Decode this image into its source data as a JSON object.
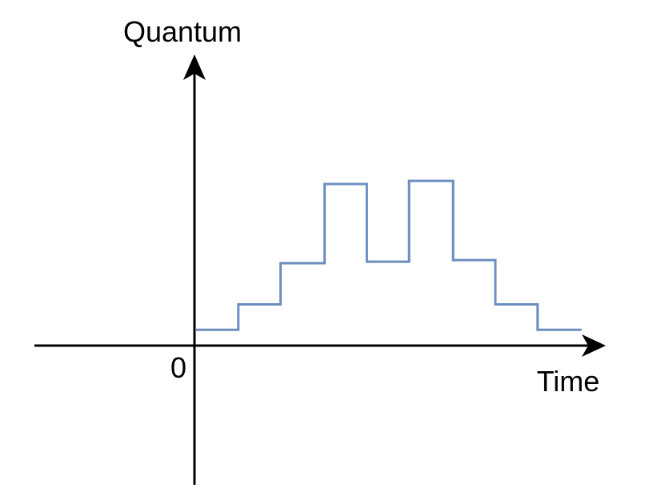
{
  "chart_data": {
    "type": "line",
    "step": true,
    "x_label": "Time",
    "y_label": "Quantum",
    "origin_label": "0",
    "x_range": [
      0,
      10
    ],
    "y_range": [
      0,
      10
    ],
    "series": [
      {
        "points": [
          [
            0.0,
            1.0
          ],
          [
            1.2,
            1.0
          ],
          [
            1.2,
            2.6
          ],
          [
            2.4,
            2.6
          ],
          [
            2.4,
            5.2
          ],
          [
            3.65,
            5.2
          ],
          [
            3.65,
            10.2
          ],
          [
            4.85,
            10.2
          ],
          [
            4.85,
            5.3
          ],
          [
            6.05,
            5.3
          ],
          [
            6.05,
            10.4
          ],
          [
            7.3,
            10.4
          ],
          [
            7.3,
            5.4
          ],
          [
            8.5,
            5.4
          ],
          [
            8.5,
            2.6
          ],
          [
            9.7,
            2.6
          ],
          [
            9.7,
            1.0
          ],
          [
            10.95,
            1.0
          ]
        ]
      }
    ],
    "colors": {
      "series": "#6c8ebf",
      "axis": "#000000"
    },
    "grid": false
  }
}
